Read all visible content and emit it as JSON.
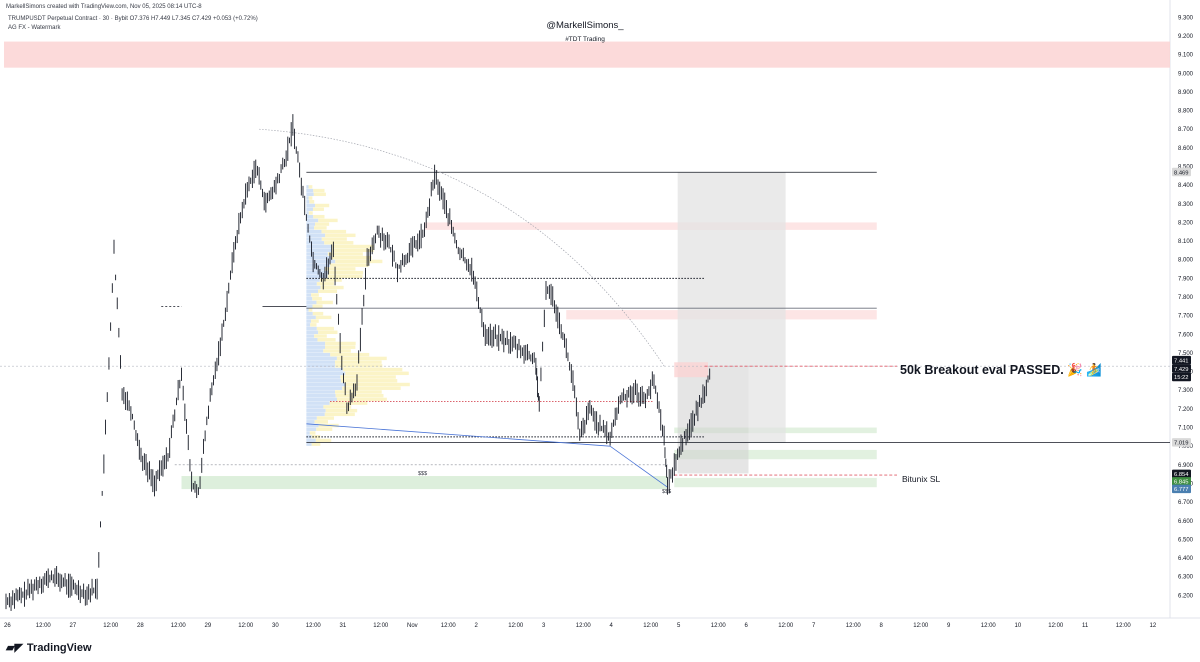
{
  "header": {
    "created_by": "MarkellSimons created with TradingView.com, Nov 05, 2025 08:14 UTC-8",
    "symbol_line": "TRUMPUSDT Perpetual Contract · 30 · Bybit  O7.376  H7.449  L7.345  C7.429  +0.053 (+0.72%)",
    "indicator_line": "AG FX - Watermark"
  },
  "watermark": {
    "title": "@MarkellSimons_",
    "subtitle": "#TDT Trading"
  },
  "annotations": {
    "main": "50k Breakout eval PASSED. 🎉 🏄",
    "sl": "Bitunix SL",
    "sss_1": "$$$",
    "sss_2": "$$$"
  },
  "footer": {
    "brand": "TradingView"
  },
  "colors": {
    "candle": "#131722",
    "supply_zone": "#fbd3d3",
    "demand_zone": "#d5ebd3",
    "profile_blue": "#c9dcf5",
    "profile_yellow": "#fbf3c4",
    "trade_box": "#e3e3e3",
    "price_tag": "#131722",
    "stop_tag": "#4a7fb0",
    "green_tag": "#3e8e41"
  },
  "chart_data": {
    "type": "line",
    "title": "TRUMPUSDT Perpetual Contract · 30 · Bybit",
    "xlabel": "",
    "ylabel": "",
    "ylim": [
      6.1,
      9.35
    ],
    "grid": false,
    "y_ticks": [
      "9.300",
      "9.200",
      "9.100",
      "9.000",
      "8.900",
      "8.800",
      "8.700",
      "8.600",
      "8.500",
      "8.400",
      "8.300",
      "8.200",
      "8.100",
      "8.000",
      "7.900",
      "7.800",
      "7.700",
      "7.600",
      "7.500",
      "7.400",
      "7.300",
      "7.200",
      "7.100",
      "7.000",
      "6.900",
      "6.800",
      "6.700",
      "6.600",
      "6.500",
      "6.400",
      "6.300",
      "6.200"
    ],
    "x_ticks": [
      "26",
      "12:00",
      "27",
      "12:00",
      "28",
      "12:00",
      "29",
      "12:00",
      "30",
      "12:00",
      "31",
      "12:00",
      "Nov",
      "12:00",
      "2",
      "12:00",
      "3",
      "12:00",
      "4",
      "12:00",
      "5",
      "12:00",
      "6",
      "12:00",
      "7",
      "12:00",
      "8",
      "12:00",
      "9",
      "12:00",
      "10",
      "12:00",
      "11",
      "12:00",
      "12"
    ],
    "series": [
      {
        "values": [
          {
            "x": 0.0,
            "y": 6.17
          },
          {
            "x": 0.25,
            "y": 6.2
          },
          {
            "x": 0.5,
            "y": 6.27
          },
          {
            "x": 0.7,
            "y": 6.3
          },
          {
            "x": 0.95,
            "y": 6.25
          },
          {
            "x": 1.2,
            "y": 6.21
          },
          {
            "x": 1.35,
            "y": 6.24
          },
          {
            "x": 1.5,
            "y": 7.25
          },
          {
            "x": 1.6,
            "y": 8.05
          },
          {
            "x": 1.72,
            "y": 7.3
          },
          {
            "x": 1.85,
            "y": 7.2
          },
          {
            "x": 2.0,
            "y": 6.95
          },
          {
            "x": 2.2,
            "y": 6.8
          },
          {
            "x": 2.4,
            "y": 6.95
          },
          {
            "x": 2.6,
            "y": 7.4
          },
          {
            "x": 2.75,
            "y": 6.8
          },
          {
            "x": 2.85,
            "y": 6.75
          },
          {
            "x": 3.0,
            "y": 7.2
          },
          {
            "x": 3.2,
            "y": 7.6
          },
          {
            "x": 3.4,
            "y": 8.1
          },
          {
            "x": 3.55,
            "y": 8.35
          },
          {
            "x": 3.7,
            "y": 8.5
          },
          {
            "x": 3.85,
            "y": 8.3
          },
          {
            "x": 4.0,
            "y": 8.4
          },
          {
            "x": 4.15,
            "y": 8.55
          },
          {
            "x": 4.25,
            "y": 8.72
          },
          {
            "x": 4.4,
            "y": 8.35
          },
          {
            "x": 4.55,
            "y": 8.0
          },
          {
            "x": 4.7,
            "y": 7.9
          },
          {
            "x": 4.85,
            "y": 8.05
          },
          {
            "x": 4.95,
            "y": 7.55
          },
          {
            "x": 5.05,
            "y": 7.2
          },
          {
            "x": 5.2,
            "y": 7.35
          },
          {
            "x": 5.35,
            "y": 8.0
          },
          {
            "x": 5.5,
            "y": 8.15
          },
          {
            "x": 5.65,
            "y": 8.1
          },
          {
            "x": 5.8,
            "y": 7.95
          },
          {
            "x": 6.0,
            "y": 8.05
          },
          {
            "x": 6.2,
            "y": 8.15
          },
          {
            "x": 6.35,
            "y": 8.45
          },
          {
            "x": 6.5,
            "y": 8.3
          },
          {
            "x": 6.7,
            "y": 8.05
          },
          {
            "x": 6.9,
            "y": 7.95
          },
          {
            "x": 7.1,
            "y": 7.6
          },
          {
            "x": 7.3,
            "y": 7.58
          },
          {
            "x": 7.5,
            "y": 7.55
          },
          {
            "x": 7.7,
            "y": 7.5
          },
          {
            "x": 7.85,
            "y": 7.45
          },
          {
            "x": 7.9,
            "y": 7.2
          },
          {
            "x": 8.0,
            "y": 7.85
          },
          {
            "x": 8.1,
            "y": 7.8
          },
          {
            "x": 8.25,
            "y": 7.6
          },
          {
            "x": 8.4,
            "y": 7.35
          },
          {
            "x": 8.5,
            "y": 7.05
          },
          {
            "x": 8.65,
            "y": 7.2
          },
          {
            "x": 8.8,
            "y": 7.1
          },
          {
            "x": 8.95,
            "y": 7.05
          },
          {
            "x": 9.1,
            "y": 7.25
          },
          {
            "x": 9.3,
            "y": 7.3
          },
          {
            "x": 9.45,
            "y": 7.25
          },
          {
            "x": 9.6,
            "y": 7.35
          },
          {
            "x": 9.75,
            "y": 7.05
          },
          {
            "x": 9.8,
            "y": 6.78
          },
          {
            "x": 9.9,
            "y": 6.9
          },
          {
            "x": 10.05,
            "y": 7.05
          },
          {
            "x": 10.2,
            "y": 7.15
          },
          {
            "x": 10.35,
            "y": 7.3
          },
          {
            "x": 10.45,
            "y": 7.43
          }
        ]
      }
    ],
    "horizontal_levels": [
      {
        "label": "8.469",
        "y": 8.469
      },
      {
        "label": "7.429",
        "y": 7.429
      },
      {
        "label": "7.019",
        "y": 7.019
      },
      {
        "label": "6.854",
        "y": 6.854
      },
      {
        "label": "6.845",
        "y": 6.845
      },
      {
        "label": "6.777",
        "y": 6.777
      }
    ],
    "zones": {
      "supply_top": [
        9.03,
        9.17
      ],
      "supply_mid": [
        8.16,
        8.2
      ],
      "supply_low": [
        7.68,
        7.73
      ],
      "demand_low": [
        6.77,
        6.84
      ],
      "demand_right_1": [
        7.07,
        7.1
      ],
      "demand_right_2": [
        6.93,
        6.98
      ],
      "demand_right_3": [
        6.78,
        6.83
      ]
    },
    "price_tags": [
      {
        "label": "7.441",
        "y": 7.46,
        "bg": "#131722",
        "fg": "#ffffff"
      },
      {
        "label": "7.429",
        "y": 7.415,
        "bg": "#131722",
        "fg": "#ffffff"
      },
      {
        "label": "15:22",
        "y": 7.37,
        "bg": "#131722",
        "fg": "#ffffff"
      },
      {
        "label": "8.469",
        "y": 8.469,
        "bg": "#d9d9d9",
        "fg": "#131722"
      },
      {
        "label": "7.019",
        "y": 7.019,
        "bg": "#d9d9d9",
        "fg": "#131722"
      },
      {
        "label": "6.854",
        "y": 6.85,
        "bg": "#131722",
        "fg": "#ffffff"
      },
      {
        "label": "6.845",
        "y": 6.81,
        "bg": "#3e8e41",
        "fg": "#ffffff"
      },
      {
        "label": "6.777",
        "y": 6.77,
        "bg": "#4a7fb0",
        "fg": "#ffffff"
      }
    ]
  }
}
